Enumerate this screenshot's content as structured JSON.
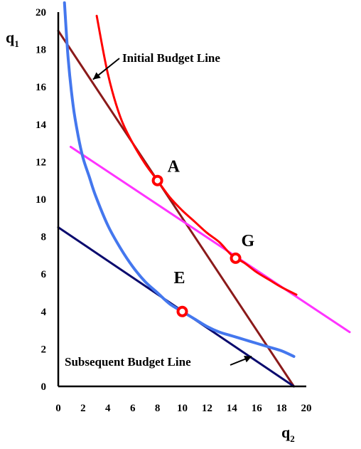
{
  "chart_data": {
    "type": "line",
    "title": "",
    "xlabel": {
      "main": "q",
      "sub": "2"
    },
    "ylabel": {
      "main": "q",
      "sub": "1"
    },
    "xlim": [
      0,
      20
    ],
    "ylim": [
      0,
      20
    ],
    "xticks": [
      "0",
      "2",
      "4",
      "6",
      "8",
      "10",
      "12",
      "14",
      "16",
      "18",
      "20"
    ],
    "yticks": [
      "0",
      "2",
      "4",
      "6",
      "8",
      "10",
      "12",
      "14",
      "16",
      "18",
      "20"
    ],
    "grid": false,
    "series": [
      {
        "color": "#8b1a1a",
        "kind": "line",
        "x": [
          0,
          19
        ],
        "y": [
          19,
          0
        ]
      },
      {
        "color": "#0a0a6e",
        "kind": "line",
        "x": [
          0,
          19
        ],
        "y": [
          8.5,
          0
        ]
      },
      {
        "color": "#ff33ff",
        "kind": "line",
        "x": [
          1,
          23.5
        ],
        "y": [
          12.8,
          2.9
        ]
      },
      {
        "color": "#ff0000",
        "kind": "curve",
        "x": [
          3.1,
          4,
          5,
          6,
          7,
          8,
          9,
          10,
          11,
          12,
          13,
          14,
          15,
          16,
          17,
          18,
          19.2
        ],
        "y": [
          19.8,
          16.7,
          14.4,
          13.0,
          11.9,
          11.0,
          10.1,
          9.4,
          8.8,
          8.2,
          7.7,
          7.0,
          6.6,
          6.1,
          5.7,
          5.3,
          4.9
        ]
      },
      {
        "color": "#4477ee",
        "kind": "curve",
        "x": [
          0.5,
          0.8,
          1.2,
          1.6,
          2.0,
          2.5,
          3.0,
          4.0,
          5.0,
          6.0,
          7.0,
          8.0,
          9.0,
          10.0,
          11.0,
          12.0,
          13.0,
          14.0,
          15.0,
          16.0,
          17.0,
          18.0,
          19.0
        ],
        "y": [
          20.5,
          17.5,
          15.0,
          13.4,
          12.2,
          11.2,
          10.2,
          8.6,
          7.4,
          6.4,
          5.6,
          5.0,
          4.4,
          4.0,
          3.6,
          3.2,
          2.9,
          2.7,
          2.5,
          2.3,
          2.1,
          1.9,
          1.6
        ]
      }
    ],
    "points": [
      {
        "label": "A",
        "x": 8,
        "y": 11
      },
      {
        "label": "G",
        "x": 14.3,
        "y": 6.85
      },
      {
        "label": "E",
        "x": 10,
        "y": 4
      }
    ],
    "annotations": [
      {
        "text": "Initial Budget Line",
        "arrow_to": [
          2.8,
          16.4
        ]
      },
      {
        "text": "Subsequent Budget Line",
        "arrow_to": [
          15.6,
          1.6
        ]
      }
    ]
  }
}
